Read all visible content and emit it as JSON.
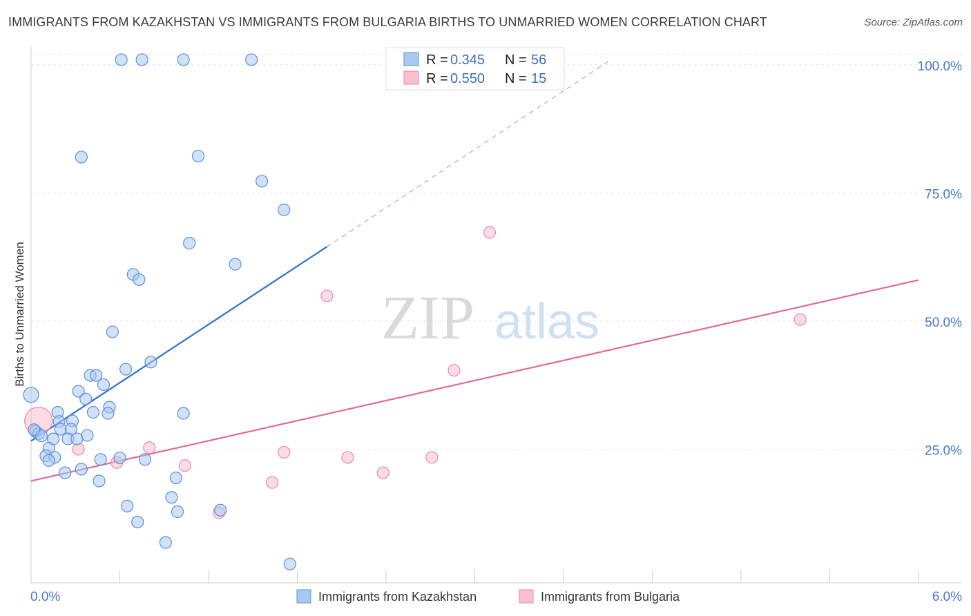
{
  "title": "IMMIGRANTS FROM KAZAKHSTAN VS IMMIGRANTS FROM BULGARIA BIRTHS TO UNMARRIED WOMEN CORRELATION CHART",
  "source": "Source: ZipAtlas.com",
  "watermark": {
    "zip": "ZIP",
    "atlas": "atlas"
  },
  "colors": {
    "kazakhstan_fill": "#a9c8f2",
    "kazakhstan_stroke": "#5b8fd6",
    "kazakhstan_line": "#2a6fd0",
    "bulgaria_fill": "#f7bfd0",
    "bulgaria_stroke": "#e68aa8",
    "bulgaria_line": "#e06a93",
    "tick_label": "#4a78c8"
  },
  "legend": {
    "r_label": "R =",
    "n_label": "N =",
    "rows": [
      {
        "r": "0.345",
        "n": "56"
      },
      {
        "r": "0.550",
        "n": "15"
      }
    ]
  },
  "chart_data": {
    "type": "scatter",
    "title": "IMMIGRANTS FROM KAZAKHSTAN VS IMMIGRANTS FROM BULGARIA BIRTHS TO UNMARRIED WOMEN CORRELATION CHART",
    "xlabel": "",
    "ylabel": "Births to Unmarried Women",
    "xlim": [
      0,
      6
    ],
    "ylim": [
      0,
      102
    ],
    "x_tick_labels": [
      {
        "value": 0,
        "label": "0.0%"
      },
      {
        "value": 6,
        "label": "6.0%"
      }
    ],
    "y_tick_labels": [
      {
        "value": 25,
        "label": "25.0%"
      },
      {
        "value": 50,
        "label": "50.0%"
      },
      {
        "value": 75,
        "label": "75.0%"
      },
      {
        "value": 100,
        "label": "100.0%"
      }
    ],
    "series": [
      {
        "name": "Immigrants from Kazakhstan",
        "R": 0.345,
        "N": 56,
        "trend": {
          "x0": 0.0,
          "y0": 26.6,
          "x1": 2.0,
          "y1": 64.5,
          "dash_x1": 3.9,
          "dash_y1": 100.6
        },
        "points": [
          {
            "x": 0.61,
            "y": 101.0
          },
          {
            "x": 0.75,
            "y": 101.0
          },
          {
            "x": 1.03,
            "y": 101.0
          },
          {
            "x": 1.49,
            "y": 101.0
          },
          {
            "x": 0.34,
            "y": 82.0
          },
          {
            "x": 1.13,
            "y": 82.2
          },
          {
            "x": 1.56,
            "y": 77.3
          },
          {
            "x": 1.71,
            "y": 71.7
          },
          {
            "x": 1.07,
            "y": 65.2
          },
          {
            "x": 1.38,
            "y": 61.1
          },
          {
            "x": 0.69,
            "y": 59.1
          },
          {
            "x": 0.73,
            "y": 58.1
          },
          {
            "x": 0.55,
            "y": 47.9
          },
          {
            "x": 0.81,
            "y": 42.0
          },
          {
            "x": 0.64,
            "y": 40.6
          },
          {
            "x": 0.4,
            "y": 39.4
          },
          {
            "x": 0.44,
            "y": 39.4
          },
          {
            "x": 0.49,
            "y": 37.6
          },
          {
            "x": 0.32,
            "y": 36.3
          },
          {
            "x": 0.37,
            "y": 34.8
          },
          {
            "x": 0.0,
            "y": 35.6
          },
          {
            "x": 0.53,
            "y": 33.2
          },
          {
            "x": 0.42,
            "y": 32.2
          },
          {
            "x": 0.52,
            "y": 32.0
          },
          {
            "x": 1.03,
            "y": 32.0
          },
          {
            "x": 0.18,
            "y": 32.2
          },
          {
            "x": 0.19,
            "y": 30.4
          },
          {
            "x": 0.28,
            "y": 30.5
          },
          {
            "x": 0.2,
            "y": 28.9
          },
          {
            "x": 0.27,
            "y": 28.9
          },
          {
            "x": 0.03,
            "y": 28.5
          },
          {
            "x": 0.05,
            "y": 28.0
          },
          {
            "x": 0.07,
            "y": 27.6
          },
          {
            "x": 0.38,
            "y": 27.7
          },
          {
            "x": 0.15,
            "y": 27.0
          },
          {
            "x": 0.25,
            "y": 27.0
          },
          {
            "x": 0.31,
            "y": 27.0
          },
          {
            "x": 0.12,
            "y": 25.2
          },
          {
            "x": 0.1,
            "y": 23.7
          },
          {
            "x": 0.16,
            "y": 23.4
          },
          {
            "x": 0.12,
            "y": 22.8
          },
          {
            "x": 0.47,
            "y": 23.0
          },
          {
            "x": 0.6,
            "y": 23.3
          },
          {
            "x": 0.77,
            "y": 23.0
          },
          {
            "x": 0.34,
            "y": 21.1
          },
          {
            "x": 0.23,
            "y": 20.4
          },
          {
            "x": 0.46,
            "y": 18.8
          },
          {
            "x": 0.98,
            "y": 19.4
          },
          {
            "x": 0.95,
            "y": 15.6
          },
          {
            "x": 0.65,
            "y": 13.9
          },
          {
            "x": 0.99,
            "y": 12.8
          },
          {
            "x": 1.28,
            "y": 13.1
          },
          {
            "x": 0.72,
            "y": 10.8
          },
          {
            "x": 0.91,
            "y": 6.8
          },
          {
            "x": 1.75,
            "y": 2.6
          },
          {
            "x": 0.02,
            "y": 28.8
          }
        ]
      },
      {
        "name": "Immigrants from Bulgaria",
        "R": 0.55,
        "N": 15,
        "trend": {
          "x0": 0.0,
          "y0": 18.8,
          "x1": 6.0,
          "y1": 58.0
        },
        "points": [
          {
            "x": 0.05,
            "y": 30.5
          },
          {
            "x": 3.1,
            "y": 67.3
          },
          {
            "x": 2.0,
            "y": 54.9
          },
          {
            "x": 5.2,
            "y": 50.3
          },
          {
            "x": 2.86,
            "y": 40.4
          },
          {
            "x": 0.8,
            "y": 25.3
          },
          {
            "x": 0.32,
            "y": 25.0
          },
          {
            "x": 1.71,
            "y": 24.4
          },
          {
            "x": 2.14,
            "y": 23.4
          },
          {
            "x": 2.71,
            "y": 23.4
          },
          {
            "x": 0.58,
            "y": 22.4
          },
          {
            "x": 1.04,
            "y": 21.8
          },
          {
            "x": 2.38,
            "y": 20.4
          },
          {
            "x": 1.63,
            "y": 18.5
          },
          {
            "x": 1.27,
            "y": 12.6
          }
        ]
      }
    ],
    "grid": true,
    "legend_placement": "top-center"
  }
}
